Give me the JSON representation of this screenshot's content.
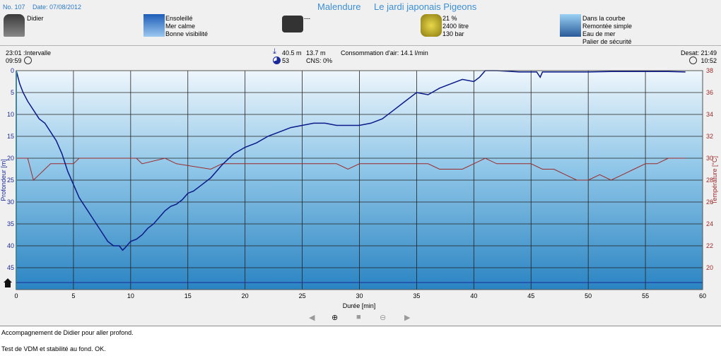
{
  "header": {
    "dive_no": "No. 107",
    "date": "Date: 07/08/2012",
    "site": "Malendure",
    "site_detail": "Le jardi japonais Pigeons"
  },
  "info": {
    "buddy": "Didier",
    "weather": [
      "Ensoleillé",
      "Mer calme",
      "Bonne visibilité"
    ],
    "camera": "---",
    "gas": [
      "21 %",
      "2400 litre",
      "130 bar"
    ],
    "dive_type": [
      "Dans la courbe",
      "Remontée simple",
      "Eau de mer",
      "Palier de sécurité"
    ]
  },
  "stats": {
    "time": "23:01",
    "interval_label": ":Intervalle",
    "interval": "09:59",
    "max_depth": "40.5 m",
    "avg_depth": "13.7 m",
    "duration": "53",
    "cns": "CNS:  0%",
    "consumption": "Consommation d'air: 14.1 l/min",
    "desat": "Desat: 21:49",
    "desat_time": "10:52"
  },
  "notes": [
    "Accompagnement de Didier pour aller profond.",
    "Test de VDM et stabilité au fond. OK."
  ],
  "chart_data": {
    "type": "line",
    "xlabel": "Durée [min]",
    "ylabel": "Profondeur [m]",
    "y2label": "Température [°C]",
    "xlim": [
      0,
      60
    ],
    "ylim": [
      0,
      50
    ],
    "y2lim": [
      18,
      38
    ],
    "x_ticks": [
      0,
      5,
      10,
      15,
      20,
      25,
      30,
      35,
      40,
      45,
      50,
      55,
      60
    ],
    "y_ticks": [
      0,
      5,
      10,
      15,
      20,
      25,
      30,
      35,
      40,
      45
    ],
    "y2_ticks": [
      20,
      22,
      24,
      26,
      28,
      30,
      32,
      34,
      36,
      38
    ],
    "grid": true,
    "colors": {
      "depth": "#0a1a8a",
      "temperature": "#9c2a2a",
      "axis": "#38b8d8"
    },
    "series": [
      {
        "axis": "depth",
        "x": [
          0,
          0.3,
          0.6,
          1,
          1.5,
          2,
          2.5,
          3,
          3.5,
          4,
          4.5,
          5,
          5.5,
          6,
          6.5,
          7,
          7.5,
          8,
          8.5,
          9,
          9.3,
          9.5,
          10,
          10.5,
          11,
          11.5,
          12,
          12.5,
          13,
          13.5,
          14,
          14.5,
          15,
          15.5,
          16,
          17,
          18,
          19,
          20,
          21,
          22,
          23,
          24,
          25,
          26,
          27,
          28,
          29,
          30,
          31,
          32,
          33,
          34,
          35,
          36,
          37,
          38,
          39,
          40,
          40.5,
          41,
          42,
          44,
          45.5,
          45.8,
          46,
          46.5,
          48,
          50,
          52,
          54,
          56,
          57,
          58.5
        ],
        "y": [
          0,
          3,
          5,
          7,
          9,
          11,
          12,
          14,
          16,
          19,
          23,
          26,
          29,
          31,
          33,
          35,
          37,
          39,
          40,
          40,
          41,
          40.5,
          39,
          38.5,
          37.5,
          36,
          35,
          33.5,
          32,
          31,
          30.5,
          29.5,
          28,
          27.5,
          26.5,
          24.5,
          21.5,
          19,
          17.5,
          16.5,
          15,
          14,
          13,
          12.5,
          12,
          12,
          12.5,
          12.5,
          12.5,
          12,
          11,
          9,
          7,
          5,
          5.5,
          4,
          3,
          2,
          2.5,
          1.5,
          0,
          0,
          0.3,
          0.3,
          1.5,
          0.3,
          0.3,
          0.3,
          0.3,
          0.2,
          0.2,
          0.2,
          0.2,
          0.3
        ]
      },
      {
        "axis": "temperature",
        "x": [
          0,
          1,
          1.5,
          2,
          2.5,
          3,
          5,
          5.5,
          8,
          9,
          10.5,
          11,
          13,
          14,
          17,
          18,
          20,
          22,
          24,
          26,
          28,
          29,
          30,
          32,
          34,
          35,
          36,
          37,
          38,
          39,
          40,
          41,
          42,
          44,
          45,
          46,
          47,
          48,
          49,
          50,
          51,
          52,
          53,
          54,
          55,
          56,
          57,
          58,
          58.5
        ],
        "y": [
          30,
          30,
          28,
          28.5,
          29,
          29.5,
          29.5,
          30,
          30,
          30,
          30,
          29.5,
          30,
          29.5,
          29,
          29.5,
          29.5,
          29.5,
          29.5,
          29.5,
          29.5,
          29,
          29.5,
          29.5,
          29.5,
          29.5,
          29.5,
          29,
          29,
          29,
          29.5,
          30,
          29.5,
          29.5,
          29.5,
          29,
          29,
          28.5,
          28,
          28,
          28.5,
          28,
          28.5,
          29,
          29.5,
          29.5,
          30,
          30,
          30
        ]
      }
    ]
  }
}
